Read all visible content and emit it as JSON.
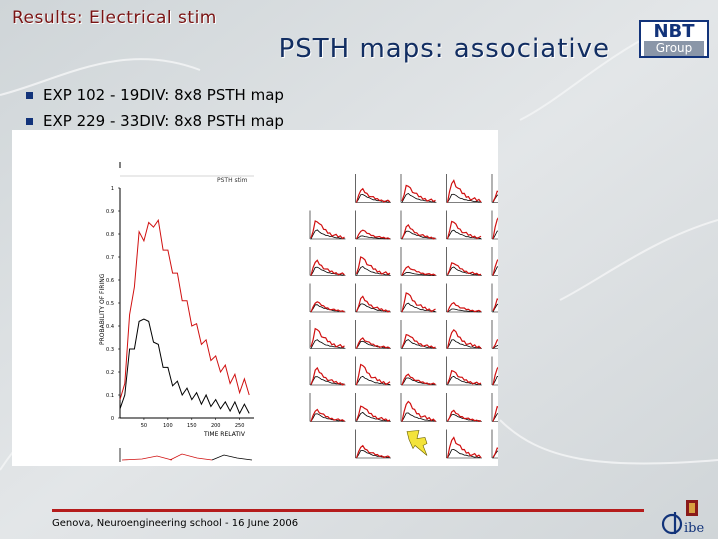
{
  "slide": {
    "tag": "Results: Electrical stim",
    "title": "PSTH maps: associative",
    "bullets": [
      "EXP 102 - 19DIV: 8x8 PSTH map",
      "EXP 229 - 33DIV: 8x8 PSTH map"
    ],
    "footer": "Genova, Neuroengineering school - 16 June 2006"
  },
  "logo": {
    "line1": "NBT",
    "line2": "Group"
  },
  "colors": {
    "title": "#122e62",
    "tag": "#7a1414",
    "accent": "#b51c1c",
    "series_red": "#d01010",
    "series_black": "#000000"
  },
  "chart_data": {
    "type": "line",
    "title": "PSTH stim",
    "ylabel": "PROBABILITY OF FIRING",
    "xlabel": "TIME RELATIV",
    "xlim": [
      0,
      280
    ],
    "ylim": [
      0,
      1
    ],
    "y_ticks": [
      "0",
      "0.1",
      "0.2",
      "0.3",
      "0.4",
      "0.5",
      "0.6",
      "0.7",
      "0.8",
      "0.9",
      "1"
    ],
    "x_ticks": [
      "50",
      "100",
      "150",
      "200",
      "250"
    ],
    "series": [
      {
        "color": "#d01010",
        "x": [
          0,
          10,
          20,
          30,
          40,
          50,
          60,
          70,
          80,
          90,
          100,
          110,
          120,
          130,
          140,
          150,
          160,
          170,
          180,
          190,
          200,
          210,
          220,
          230,
          240,
          250,
          260,
          270
        ],
        "values": [
          0.05,
          0.18,
          0.42,
          0.6,
          0.78,
          0.8,
          0.82,
          0.86,
          0.83,
          0.76,
          0.7,
          0.66,
          0.6,
          0.54,
          0.48,
          0.43,
          0.38,
          0.35,
          0.31,
          0.28,
          0.24,
          0.23,
          0.2,
          0.18,
          0.16,
          0.14,
          0.14,
          0.13
        ]
      },
      {
        "color": "#000000",
        "x": [
          0,
          10,
          20,
          30,
          40,
          50,
          60,
          70,
          80,
          90,
          100,
          110,
          120,
          130,
          140,
          150,
          160,
          170,
          180,
          190,
          200,
          210,
          220,
          230,
          240,
          250,
          260,
          270
        ],
        "values": [
          0.02,
          0.12,
          0.28,
          0.32,
          0.4,
          0.45,
          0.4,
          0.35,
          0.3,
          0.24,
          0.2,
          0.16,
          0.14,
          0.12,
          0.11,
          0.1,
          0.09,
          0.08,
          0.08,
          0.07,
          0.06,
          0.06,
          0.05,
          0.05,
          0.05,
          0.04,
          0.04,
          0.04
        ]
      }
    ],
    "grid": {
      "rows": 8,
      "cols": 8,
      "stim_row": 7,
      "stim_col": 2
    }
  }
}
